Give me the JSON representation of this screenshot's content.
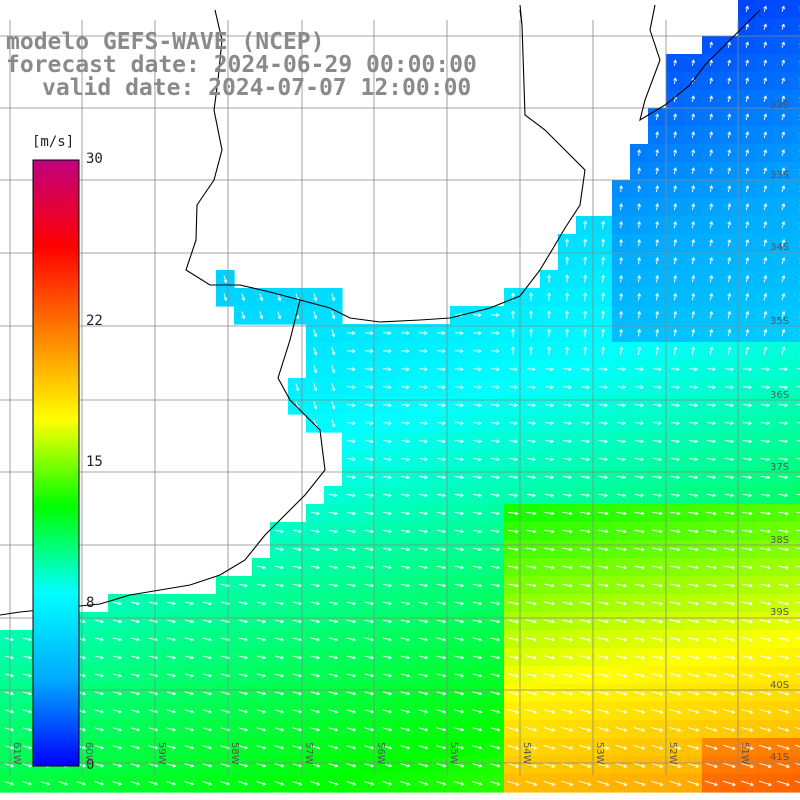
{
  "title": {
    "model": "modelo GEFS-WAVE (NCEP)",
    "forecast": "forecast date: 2024-06-29 00:00:00",
    "valid": "valid date: 2024-07-07 12:00:00"
  },
  "colorbar": {
    "unit": "[m/s]",
    "ticks": [
      {
        "value": 30,
        "label": "30"
      },
      {
        "value": 22,
        "label": "22"
      },
      {
        "value": 15,
        "label": "15"
      },
      {
        "value": 8,
        "label": "8"
      },
      {
        "value": 0,
        "label": "0"
      }
    ],
    "stops": [
      "#0000ff",
      "#00aaff",
      "#00ffff",
      "#00ff00",
      "#ffff00",
      "#ff8000",
      "#ff0000",
      "#c0007f"
    ]
  },
  "lat_labels": [
    "32S",
    "33S",
    "34S",
    "35S",
    "36S",
    "37S",
    "38S",
    "39S",
    "40S",
    "41S"
  ],
  "lon_labels": [
    "61W",
    "60W",
    "59W",
    "58W",
    "57W",
    "56W",
    "55W",
    "54W",
    "53W",
    "52W",
    "51W"
  ],
  "colors": {
    "land": "#ffffff",
    "grid": "#888888",
    "coast": "#000000",
    "arrow": "#ffffff"
  }
}
